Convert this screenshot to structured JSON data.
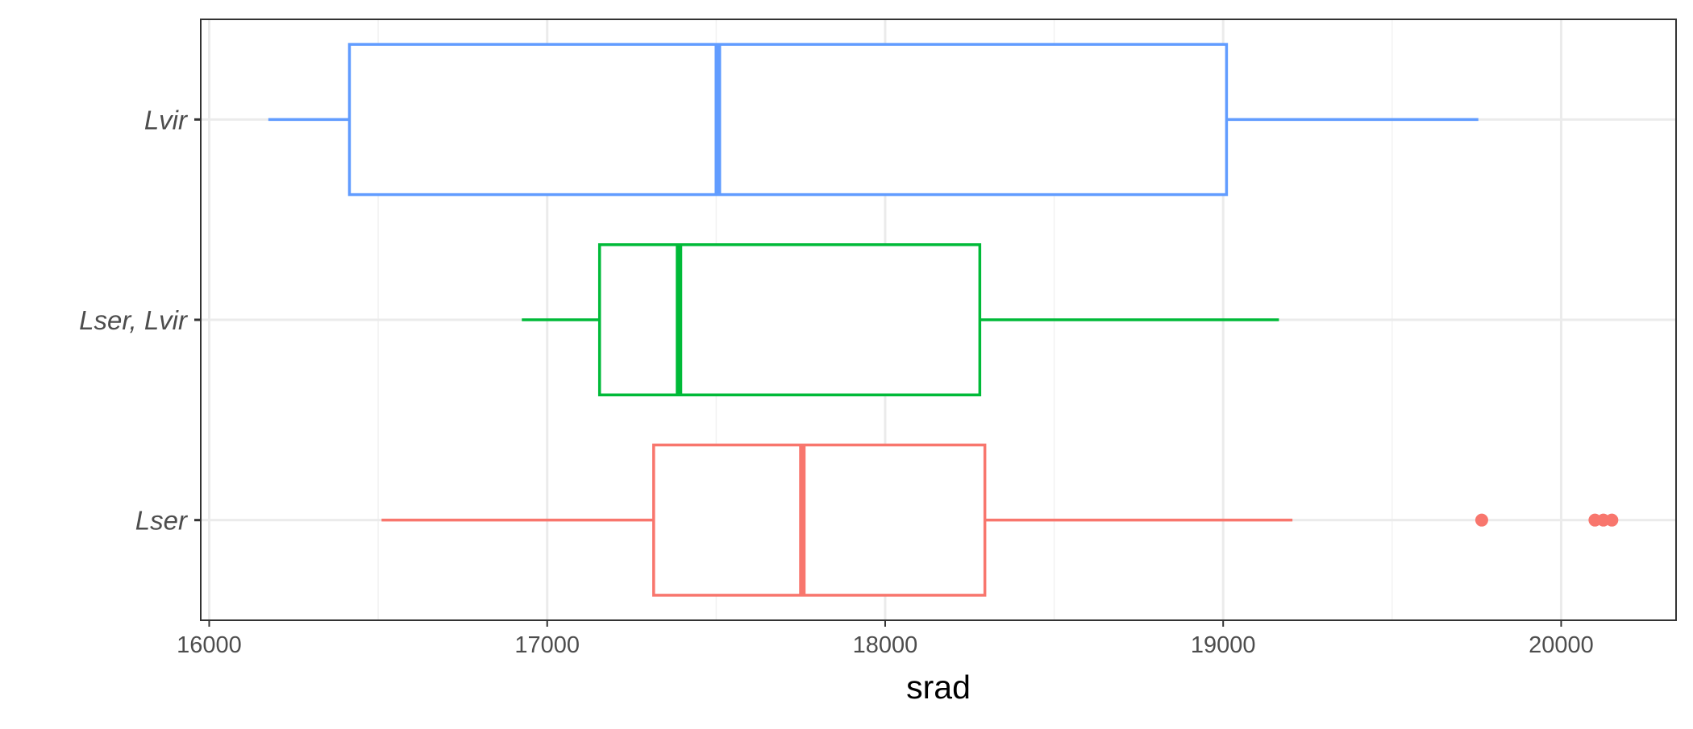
{
  "chart_data": {
    "type": "boxplot",
    "orientation": "horizontal",
    "xlabel": "srad",
    "ylabel": "",
    "xlim": [
      15975,
      20340
    ],
    "x_ticks": [
      16000,
      17000,
      18000,
      19000,
      20000
    ],
    "grid": true,
    "legend": "none",
    "categories": [
      "Lser",
      "Lser, Lvir",
      "Lvir"
    ],
    "series": [
      {
        "category": "Lser",
        "color": "#F8766D",
        "whisker_low": 16510,
        "q1": 17315,
        "median": 17755,
        "q3": 18295,
        "whisker_high": 19205,
        "outliers": [
          19765,
          20100,
          20125,
          20150
        ]
      },
      {
        "category": "Lser, Lvir",
        "color": "#00BA38",
        "whisker_low": 16925,
        "q1": 17155,
        "median": 17390,
        "q3": 18280,
        "whisker_high": 19165
      },
      {
        "category": "Lvir",
        "color": "#619CFF",
        "whisker_low": 16175,
        "q1": 16415,
        "median": 17505,
        "q3": 19010,
        "whisker_high": 19755
      }
    ]
  }
}
